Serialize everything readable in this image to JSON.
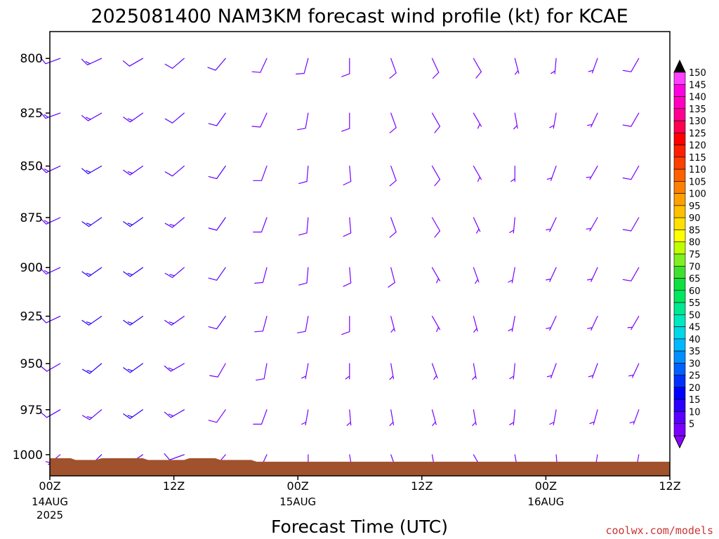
{
  "chart_data": {
    "type": "wind-barb",
    "title": "2025081400 NAM3KM forecast wind profile (kt) for KCAE",
    "xlabel": "Forecast Time (UTC)",
    "ylabel": "",
    "credit": "coolwx.com/models",
    "x_ticks": [
      {
        "hour": 0,
        "label": "00Z",
        "sub1": "14AUG",
        "sub2": "2025"
      },
      {
        "hour": 12,
        "label": "12Z",
        "sub1": "",
        "sub2": ""
      },
      {
        "hour": 24,
        "label": "00Z",
        "sub1": "15AUG",
        "sub2": ""
      },
      {
        "hour": 36,
        "label": "12Z",
        "sub1": "",
        "sub2": ""
      },
      {
        "hour": 48,
        "label": "00Z",
        "sub1": "16AUG",
        "sub2": ""
      },
      {
        "hour": 60,
        "label": "12Z",
        "sub1": "",
        "sub2": ""
      }
    ],
    "xlim_hours": [
      0,
      60
    ],
    "y_ticks": [
      800,
      825,
      850,
      875,
      900,
      925,
      950,
      975,
      1000
    ],
    "ylim_hpa": [
      788,
      1012
    ],
    "y_scale": "log",
    "colorbar": {
      "levels": [
        5,
        10,
        15,
        20,
        25,
        30,
        35,
        40,
        45,
        50,
        55,
        60,
        65,
        70,
        75,
        80,
        85,
        90,
        95,
        100,
        105,
        110,
        115,
        120,
        125,
        130,
        135,
        140,
        145,
        150
      ],
      "colors": [
        "#7b00ff",
        "#5a00ff",
        "#2a00ff",
        "#0000ff",
        "#0030ff",
        "#0060ff",
        "#0090ff",
        "#00b8ff",
        "#00d8e8",
        "#00e8c0",
        "#00e890",
        "#00e860",
        "#10e040",
        "#40e030",
        "#80f020",
        "#c0ff00",
        "#ffff00",
        "#ffe000",
        "#ffc000",
        "#ffa000",
        "#ff8000",
        "#ff6000",
        "#ff4000",
        "#ff2000",
        "#ff0000",
        "#ff0050",
        "#ff0090",
        "#ff00c0",
        "#ff00e0",
        "#ff40ff"
      ],
      "cap_low": "#8a00ff",
      "cap_high": "#000000"
    },
    "terrain_color": "#a0522d",
    "terrain_hpa": [
      1002,
      1002,
      1002,
      1002,
      1002,
      1003,
      1003,
      1003,
      1003,
      1003,
      1002,
      1002,
      1002,
      1002,
      1002,
      1002,
      1002,
      1002,
      1002,
      1003,
      1003,
      1003,
      1003,
      1003,
      1003,
      1003,
      1003,
      1002,
      1002,
      1002,
      1002,
      1002,
      1002,
      1003,
      1003,
      1003,
      1003,
      1003,
      1003,
      1003,
      1004,
      1004,
      1004,
      1004,
      1004,
      1004,
      1004,
      1004,
      1004,
      1004,
      1004,
      1004,
      1004,
      1004,
      1004,
      1004,
      1004,
      1004,
      1004,
      1004,
      1004,
      1004,
      1004,
      1004,
      1004,
      1004,
      1004,
      1004,
      1004,
      1004,
      1004,
      1004,
      1004,
      1004,
      1004,
      1004,
      1004,
      1004,
      1004,
      1004,
      1004,
      1004,
      1004,
      1004,
      1004,
      1004,
      1004,
      1004,
      1004,
      1004,
      1004,
      1004,
      1004,
      1004,
      1004,
      1004,
      1004,
      1004,
      1004,
      1004,
      1004,
      1004,
      1004,
      1004,
      1004,
      1004,
      1004,
      1004,
      1004,
      1004,
      1004,
      1004,
      1004,
      1004,
      1004,
      1004,
      1004,
      1004,
      1004,
      1004,
      1004
    ],
    "barb_rows_hpa": [
      1000,
      975,
      950,
      925,
      900,
      875,
      850,
      825,
      800
    ],
    "barb_cols_hours": [
      1,
      5,
      9,
      13,
      17,
      21,
      25,
      29,
      33,
      37,
      41,
      45,
      49,
      53,
      57
    ],
    "barbs": [
      [
        [
          230,
          7
        ],
        [
          225,
          12
        ],
        [
          235,
          14
        ],
        [
          250,
          12
        ],
        [
          220,
          9
        ],
        [
          205,
          8
        ],
        [
          180,
          6
        ],
        [
          170,
          6
        ],
        [
          160,
          5
        ],
        [
          170,
          5
        ],
        [
          150,
          5
        ],
        [
          170,
          5
        ],
        [
          175,
          4
        ],
        [
          190,
          4
        ],
        [
          190,
          5
        ]
      ],
      [
        [
          240,
          10
        ],
        [
          230,
          14
        ],
        [
          235,
          15
        ],
        [
          240,
          13
        ],
        [
          215,
          9
        ],
        [
          200,
          8
        ],
        [
          190,
          6
        ],
        [
          175,
          7
        ],
        [
          170,
          6
        ],
        [
          165,
          6
        ],
        [
          170,
          6
        ],
        [
          185,
          6
        ],
        [
          190,
          5
        ],
        [
          195,
          5
        ],
        [
          200,
          6
        ]
      ],
      [
        [
          240,
          11
        ],
        [
          230,
          16
        ],
        [
          235,
          16
        ],
        [
          240,
          14
        ],
        [
          210,
          9
        ],
        [
          190,
          8
        ],
        [
          190,
          7
        ],
        [
          180,
          7
        ],
        [
          170,
          7
        ],
        [
          160,
          6
        ],
        [
          170,
          6
        ],
        [
          185,
          6
        ],
        [
          200,
          6
        ],
        [
          200,
          6
        ],
        [
          205,
          7
        ]
      ],
      [
        [
          245,
          12
        ],
        [
          235,
          17
        ],
        [
          235,
          16
        ],
        [
          235,
          14
        ],
        [
          215,
          10
        ],
        [
          195,
          8
        ],
        [
          190,
          8
        ],
        [
          180,
          8
        ],
        [
          165,
          7
        ],
        [
          150,
          6
        ],
        [
          165,
          7
        ],
        [
          190,
          6
        ],
        [
          205,
          6
        ],
        [
          205,
          7
        ],
        [
          210,
          7
        ]
      ],
      [
        [
          245,
          13
        ],
        [
          235,
          17
        ],
        [
          235,
          16
        ],
        [
          230,
          14
        ],
        [
          215,
          10
        ],
        [
          195,
          9
        ],
        [
          185,
          8
        ],
        [
          175,
          8
        ],
        [
          165,
          8
        ],
        [
          150,
          7
        ],
        [
          160,
          7
        ],
        [
          190,
          7
        ],
        [
          205,
          7
        ],
        [
          205,
          7
        ],
        [
          210,
          8
        ]
      ],
      [
        [
          245,
          13
        ],
        [
          235,
          16
        ],
        [
          235,
          15
        ],
        [
          230,
          13
        ],
        [
          215,
          10
        ],
        [
          200,
          9
        ],
        [
          185,
          8
        ],
        [
          175,
          8
        ],
        [
          160,
          8
        ],
        [
          150,
          8
        ],
        [
          155,
          7
        ],
        [
          185,
          7
        ],
        [
          205,
          7
        ],
        [
          210,
          7
        ],
        [
          210,
          8
        ]
      ],
      [
        [
          245,
          13
        ],
        [
          240,
          15
        ],
        [
          235,
          14
        ],
        [
          230,
          12
        ],
        [
          215,
          10
        ],
        [
          200,
          9
        ],
        [
          185,
          8
        ],
        [
          175,
          8
        ],
        [
          160,
          8
        ],
        [
          150,
          8
        ],
        [
          150,
          7
        ],
        [
          180,
          7
        ],
        [
          200,
          7
        ],
        [
          210,
          7
        ],
        [
          210,
          8
        ]
      ],
      [
        [
          250,
          13
        ],
        [
          240,
          14
        ],
        [
          235,
          13
        ],
        [
          230,
          11
        ],
        [
          215,
          10
        ],
        [
          205,
          9
        ],
        [
          190,
          8
        ],
        [
          180,
          8
        ],
        [
          160,
          8
        ],
        [
          150,
          8
        ],
        [
          150,
          7
        ],
        [
          170,
          7
        ],
        [
          190,
          7
        ],
        [
          205,
          7
        ],
        [
          210,
          8
        ]
      ],
      [
        [
          250,
          12
        ],
        [
          245,
          13
        ],
        [
          240,
          12
        ],
        [
          230,
          11
        ],
        [
          220,
          10
        ],
        [
          205,
          9
        ],
        [
          195,
          8
        ],
        [
          180,
          8
        ],
        [
          160,
          8
        ],
        [
          155,
          8
        ],
        [
          150,
          8
        ],
        [
          165,
          7
        ],
        [
          185,
          7
        ],
        [
          200,
          7
        ],
        [
          210,
          8
        ]
      ]
    ]
  }
}
